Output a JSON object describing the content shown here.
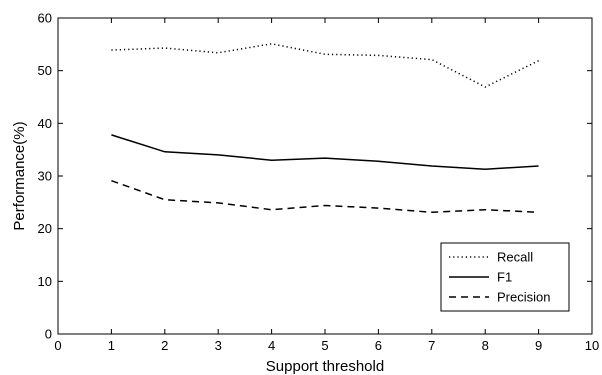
{
  "chart_data": {
    "type": "line",
    "title": "",
    "xlabel": "Support threshold",
    "ylabel": "Performance(%)",
    "xlim": [
      0,
      10
    ],
    "ylim": [
      0,
      60
    ],
    "x_ticks": [
      "0",
      "1",
      "2",
      "3",
      "4",
      "5",
      "6",
      "7",
      "8",
      "9",
      "10"
    ],
    "y_ticks": [
      "0",
      "10",
      "20",
      "30",
      "40",
      "50",
      "60"
    ],
    "grid": false,
    "legend_position": "bottom-right",
    "x": [
      1,
      2,
      3,
      4,
      5,
      6,
      7,
      8,
      9
    ],
    "series": [
      {
        "name": "Recall",
        "style": "dotted",
        "color": "#000000",
        "values": [
          53.9,
          54.3,
          53.4,
          55.1,
          53.1,
          52.9,
          52.1,
          46.9,
          51.9
        ]
      },
      {
        "name": "F1",
        "style": "solid",
        "color": "#000000",
        "values": [
          37.8,
          34.6,
          34.0,
          33.0,
          33.4,
          32.8,
          31.9,
          31.3,
          31.9
        ]
      },
      {
        "name": "Precision",
        "style": "dashed",
        "color": "#000000",
        "values": [
          29.1,
          25.5,
          24.9,
          23.6,
          24.4,
          23.9,
          23.1,
          23.6,
          23.1
        ]
      }
    ]
  }
}
